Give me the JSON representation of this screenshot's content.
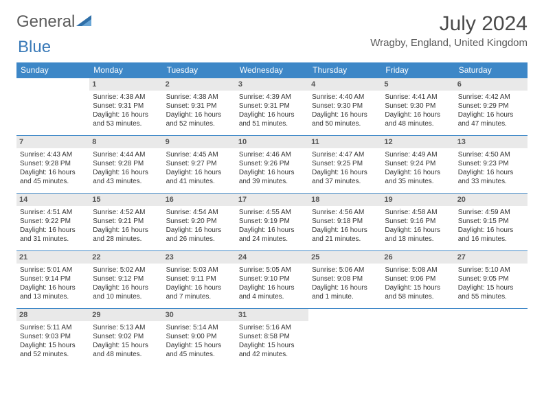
{
  "brand": {
    "part1": "General",
    "part2": "Blue"
  },
  "title": "July 2024",
  "location": "Wragby, England, United Kingdom",
  "colors": {
    "header_bg": "#3d87c7",
    "header_text": "#ffffff",
    "daynum_bg": "#e9e9e9",
    "row_border": "#3d87c7",
    "body_text": "#333333",
    "title_text": "#4a4a4a",
    "brand_gray": "#5a5a5a",
    "brand_blue": "#3a7ab8"
  },
  "day_headers": [
    "Sunday",
    "Monday",
    "Tuesday",
    "Wednesday",
    "Thursday",
    "Friday",
    "Saturday"
  ],
  "weeks": [
    [
      {
        "n": "",
        "sunrise": "",
        "sunset": "",
        "daylight": ""
      },
      {
        "n": "1",
        "sunrise": "4:38 AM",
        "sunset": "9:31 PM",
        "daylight": "16 hours and 53 minutes."
      },
      {
        "n": "2",
        "sunrise": "4:38 AM",
        "sunset": "9:31 PM",
        "daylight": "16 hours and 52 minutes."
      },
      {
        "n": "3",
        "sunrise": "4:39 AM",
        "sunset": "9:31 PM",
        "daylight": "16 hours and 51 minutes."
      },
      {
        "n": "4",
        "sunrise": "4:40 AM",
        "sunset": "9:30 PM",
        "daylight": "16 hours and 50 minutes."
      },
      {
        "n": "5",
        "sunrise": "4:41 AM",
        "sunset": "9:30 PM",
        "daylight": "16 hours and 48 minutes."
      },
      {
        "n": "6",
        "sunrise": "4:42 AM",
        "sunset": "9:29 PM",
        "daylight": "16 hours and 47 minutes."
      }
    ],
    [
      {
        "n": "7",
        "sunrise": "4:43 AM",
        "sunset": "9:28 PM",
        "daylight": "16 hours and 45 minutes."
      },
      {
        "n": "8",
        "sunrise": "4:44 AM",
        "sunset": "9:28 PM",
        "daylight": "16 hours and 43 minutes."
      },
      {
        "n": "9",
        "sunrise": "4:45 AM",
        "sunset": "9:27 PM",
        "daylight": "16 hours and 41 minutes."
      },
      {
        "n": "10",
        "sunrise": "4:46 AM",
        "sunset": "9:26 PM",
        "daylight": "16 hours and 39 minutes."
      },
      {
        "n": "11",
        "sunrise": "4:47 AM",
        "sunset": "9:25 PM",
        "daylight": "16 hours and 37 minutes."
      },
      {
        "n": "12",
        "sunrise": "4:49 AM",
        "sunset": "9:24 PM",
        "daylight": "16 hours and 35 minutes."
      },
      {
        "n": "13",
        "sunrise": "4:50 AM",
        "sunset": "9:23 PM",
        "daylight": "16 hours and 33 minutes."
      }
    ],
    [
      {
        "n": "14",
        "sunrise": "4:51 AM",
        "sunset": "9:22 PM",
        "daylight": "16 hours and 31 minutes."
      },
      {
        "n": "15",
        "sunrise": "4:52 AM",
        "sunset": "9:21 PM",
        "daylight": "16 hours and 28 minutes."
      },
      {
        "n": "16",
        "sunrise": "4:54 AM",
        "sunset": "9:20 PM",
        "daylight": "16 hours and 26 minutes."
      },
      {
        "n": "17",
        "sunrise": "4:55 AM",
        "sunset": "9:19 PM",
        "daylight": "16 hours and 24 minutes."
      },
      {
        "n": "18",
        "sunrise": "4:56 AM",
        "sunset": "9:18 PM",
        "daylight": "16 hours and 21 minutes."
      },
      {
        "n": "19",
        "sunrise": "4:58 AM",
        "sunset": "9:16 PM",
        "daylight": "16 hours and 18 minutes."
      },
      {
        "n": "20",
        "sunrise": "4:59 AM",
        "sunset": "9:15 PM",
        "daylight": "16 hours and 16 minutes."
      }
    ],
    [
      {
        "n": "21",
        "sunrise": "5:01 AM",
        "sunset": "9:14 PM",
        "daylight": "16 hours and 13 minutes."
      },
      {
        "n": "22",
        "sunrise": "5:02 AM",
        "sunset": "9:12 PM",
        "daylight": "16 hours and 10 minutes."
      },
      {
        "n": "23",
        "sunrise": "5:03 AM",
        "sunset": "9:11 PM",
        "daylight": "16 hours and 7 minutes."
      },
      {
        "n": "24",
        "sunrise": "5:05 AM",
        "sunset": "9:10 PM",
        "daylight": "16 hours and 4 minutes."
      },
      {
        "n": "25",
        "sunrise": "5:06 AM",
        "sunset": "9:08 PM",
        "daylight": "16 hours and 1 minute."
      },
      {
        "n": "26",
        "sunrise": "5:08 AM",
        "sunset": "9:06 PM",
        "daylight": "15 hours and 58 minutes."
      },
      {
        "n": "27",
        "sunrise": "5:10 AM",
        "sunset": "9:05 PM",
        "daylight": "15 hours and 55 minutes."
      }
    ],
    [
      {
        "n": "28",
        "sunrise": "5:11 AM",
        "sunset": "9:03 PM",
        "daylight": "15 hours and 52 minutes."
      },
      {
        "n": "29",
        "sunrise": "5:13 AM",
        "sunset": "9:02 PM",
        "daylight": "15 hours and 48 minutes."
      },
      {
        "n": "30",
        "sunrise": "5:14 AM",
        "sunset": "9:00 PM",
        "daylight": "15 hours and 45 minutes."
      },
      {
        "n": "31",
        "sunrise": "5:16 AM",
        "sunset": "8:58 PM",
        "daylight": "15 hours and 42 minutes."
      },
      {
        "n": "",
        "sunrise": "",
        "sunset": "",
        "daylight": ""
      },
      {
        "n": "",
        "sunrise": "",
        "sunset": "",
        "daylight": ""
      },
      {
        "n": "",
        "sunrise": "",
        "sunset": "",
        "daylight": ""
      }
    ]
  ],
  "labels": {
    "sunrise": "Sunrise: ",
    "sunset": "Sunset: ",
    "daylight": "Daylight: "
  }
}
